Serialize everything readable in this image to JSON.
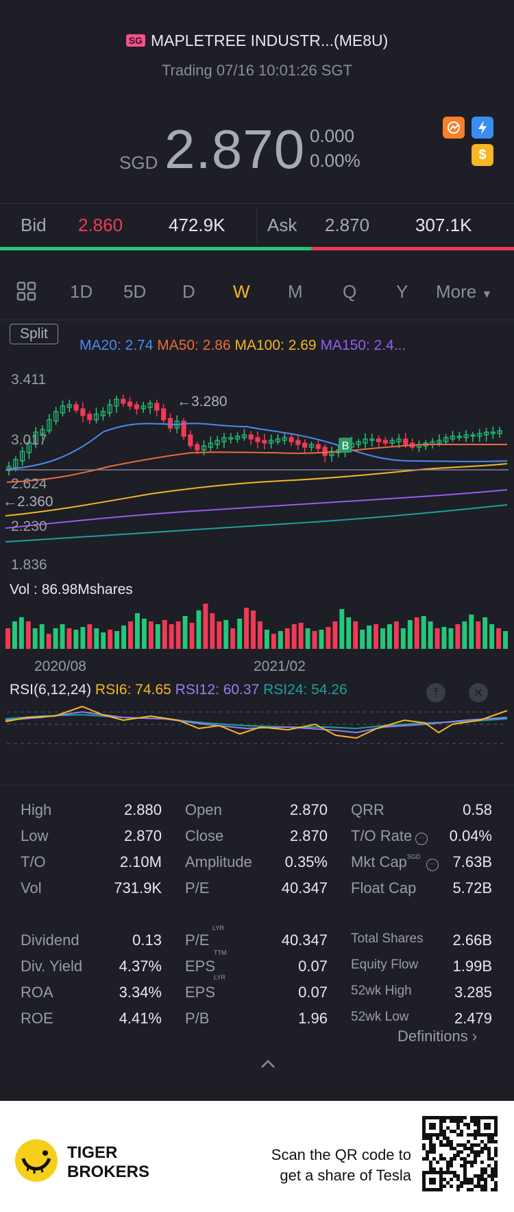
{
  "header": {
    "market_badge": "SG",
    "title": "MAPLETREE INDUSTR...(ME8U)",
    "status": "Trading 07/16 10:01:26 SGT"
  },
  "quote": {
    "currency": "SGD",
    "price": "2.870",
    "change": "0.000",
    "change_pct": "0.00%"
  },
  "icons": [
    "chart-badge-icon",
    "lightning-icon",
    "dollar-icon"
  ],
  "bid_ask": {
    "bid_label": "Bid",
    "bid_price": "2.860",
    "bid_size": "472.9K",
    "ask_label": "Ask",
    "ask_price": "2.870",
    "ask_size": "307.1K",
    "bid_ratio": 0.605
  },
  "tabs": [
    "1D",
    "5D",
    "D",
    "W",
    "M",
    "Q",
    "Y",
    "More"
  ],
  "active_tab": "W",
  "chart": {
    "split_label": "Split",
    "ma": [
      {
        "label": "MA20: 2.74",
        "color": "#4d8af0"
      },
      {
        "label": "MA50: 2.86",
        "color": "#f06a3a"
      },
      {
        "label": "MA100: 2.69",
        "color": "#f6b723"
      },
      {
        "label": "MA150: 2.4...",
        "color": "#9a5cf0"
      }
    ],
    "y_labels": [
      "3.411",
      "3.017",
      "2.624",
      "2.230",
      "1.836"
    ],
    "high_marker": "3.280",
    "low_marker": "2.360",
    "badge": "B",
    "vol_label": "Vol  : 86.98Mshares",
    "x_labels": [
      "2020/08",
      "2021/02"
    ],
    "rsi": {
      "title": "RSI(6,12,24)",
      "rsi6": "RSI6: 74.65",
      "rsi12": "RSI12: 60.37",
      "rsi24": "RSI24: 54.26"
    }
  },
  "stats": {
    "rows1": [
      {
        "l1": "High",
        "v1": "2.880",
        "l2": "Open",
        "v2": "2.870",
        "l3": "QRR",
        "v3": "0.58"
      },
      {
        "l1": "Low",
        "v1": "2.870",
        "l2": "Close",
        "v2": "2.870",
        "l3": "T/O Rate",
        "v3": "0.04%"
      },
      {
        "l1": "T/O",
        "v1": "2.10M",
        "l2": "Amplitude",
        "v2": "0.35%",
        "l3": "Mkt Cap",
        "v3": "7.63B"
      },
      {
        "l1": "Vol",
        "v1": "731.9K",
        "l2": "P/E",
        "v2": "40.347",
        "l3": "Float Cap",
        "v3": "5.72B"
      }
    ],
    "rows2": [
      {
        "l1": "Dividend",
        "v1": "0.13",
        "l2": "P/E",
        "v2": "40.347",
        "l3": "Total Shares",
        "v3": "2.66B"
      },
      {
        "l1": "Div. Yield",
        "v1": "4.37%",
        "l2": "EPS",
        "v2": "0.07",
        "l3": "Equity Flow",
        "v3": "1.99B"
      },
      {
        "l1": "ROA",
        "v1": "3.34%",
        "l2": "EPS",
        "v2": "0.07",
        "l3": "52wk High",
        "v3": "3.285"
      },
      {
        "l1": "ROE",
        "v1": "4.41%",
        "l2": "P/B",
        "v2": "1.96",
        "l3": "52wk Low",
        "v3": "2.479"
      }
    ],
    "sup_sgd": "SGD",
    "sup_lyr": "LYR",
    "sup_ttm": "TTM",
    "definitions": "Definitions"
  },
  "footer": {
    "brand_line1": "TIGER",
    "brand_line2": "BROKERS",
    "promo_line1": "Scan the QR code to",
    "promo_line2": "get a share of Tesla"
  },
  "colors": {
    "up": "#f03a55",
    "down": "#24c77a",
    "accent": "#f6b723",
    "bg": "#1d1e26"
  }
}
